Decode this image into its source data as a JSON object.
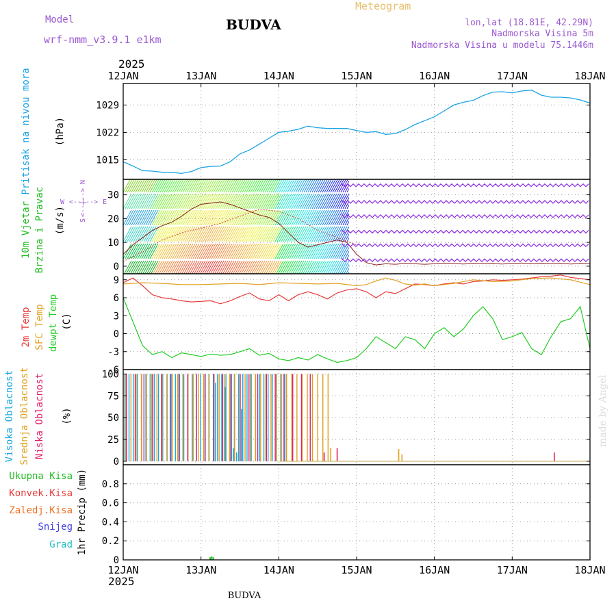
{
  "header": {
    "model_label": "Model",
    "model_name": "wrf-nmm_v3.9.1 e1km",
    "title": "BUDVA",
    "meteogram": "Meteogram",
    "lonlat": "lon,lat (18.81E, 42.29N)",
    "altitude": "Nadmorska Visina 5m",
    "model_altitude": "Nadmorska Visina u modelu 75.1446m",
    "year_top": "2025",
    "year_bottom": "2025",
    "footer": "BUDVA",
    "credit": "made by Angel"
  },
  "colors": {
    "pressure": "#1aa3e6",
    "temp2m": "#e83a3a",
    "sfc": "#e0a020",
    "dewpt": "#22cc22",
    "wind_label_green": "#22bb22",
    "purple": "#8a2be2",
    "cloud_high": "#18a8e0",
    "cloud_mid": "#e0a020",
    "cloud_low": "#e0206a",
    "rain_total": "#22bb22",
    "rain_conv": "#e83a3a",
    "rain_frz": "#f07020",
    "snow": "#4040e0",
    "hail": "#20c0c0"
  },
  "chart_data": [
    {
      "type": "line",
      "panel": "pressure",
      "ylabel": [
        "Pritisak na nivou mora",
        "(hPa)"
      ],
      "yticks": [
        1015,
        1022,
        1029
      ],
      "ylim": [
        1010.0,
        1034.5
      ],
      "xlim": [
        0,
        144
      ],
      "x_tick_labels": [
        "12JAN",
        "13JAN",
        "14JAN",
        "15JAN",
        "16JAN",
        "17JAN",
        "18JAN"
      ],
      "x_ticks_hours": [
        0,
        24,
        48,
        72,
        96,
        120,
        144
      ],
      "series": [
        {
          "x": [
            0,
            3,
            6,
            9,
            12,
            15,
            18,
            21,
            24,
            27,
            30,
            33,
            36,
            39,
            42,
            45,
            48,
            51,
            54,
            57,
            60,
            63,
            66,
            69,
            72,
            75,
            78,
            81,
            84,
            87,
            90,
            93,
            96,
            99,
            102,
            105,
            108,
            111,
            114,
            117,
            120,
            123,
            126,
            129,
            132,
            135,
            138,
            141,
            144
          ],
          "y": [
            1014.5,
            1013.4,
            1012.2,
            1012.1,
            1011.8,
            1011.8,
            1011.5,
            1012.0,
            1013.0,
            1013.3,
            1013.4,
            1014.5,
            1016.5,
            1017.5,
            1019.0,
            1020.5,
            1022.0,
            1022.3,
            1022.8,
            1023.6,
            1023.2,
            1023.0,
            1023.0,
            1023.0,
            1022.5,
            1022.0,
            1022.2,
            1021.5,
            1021.7,
            1022.7,
            1024.0,
            1025.0,
            1026.0,
            1027.5,
            1029.0,
            1029.7,
            1030.2,
            1031.4,
            1032.3,
            1032.4,
            1032.1,
            1032.6,
            1032.8,
            1031.5,
            1031.0,
            1031.0,
            1030.8,
            1030.3,
            1029.5
          ]
        }
      ]
    },
    {
      "type": "line",
      "panel": "wind",
      "ylabel": [
        "10m Vjetar",
        "Brzina i Pravac",
        "(m/s)"
      ],
      "compass": [
        "W",
        "<--|-->",
        "E",
        "N",
        "<--|-->",
        "S"
      ],
      "yticks": [
        0,
        10,
        20,
        30
      ],
      "ylim": [
        -3.2,
        36.5
      ],
      "xlim": [
        0,
        144
      ],
      "wind_rows": [
        2.5,
        8.8,
        14.5,
        21,
        27,
        34
      ],
      "series": [
        {
          "x": [
            0,
            3,
            6,
            9,
            12,
            15,
            18,
            21,
            24,
            27,
            30,
            33,
            36,
            39,
            42,
            45,
            48,
            51,
            54,
            57,
            60,
            63,
            66,
            69,
            72,
            75,
            78,
            81,
            84,
            87,
            90,
            93,
            96,
            99,
            102,
            105,
            108,
            111,
            114,
            117,
            120,
            123,
            126,
            129,
            132,
            135,
            138,
            141,
            144
          ],
          "y": [
            5,
            9,
            12,
            15,
            17,
            18.5,
            21,
            24,
            26,
            26.5,
            27,
            26,
            24.5,
            23,
            21.5,
            20.5,
            18,
            14,
            10,
            8,
            9,
            10,
            11,
            10,
            5,
            1.5,
            0.5,
            1.0,
            0.8,
            1.2,
            1.0,
            0.8,
            1.0,
            1.3,
            1.1,
            0.9,
            1.2,
            1.0,
            1.1,
            0.9,
            1.2,
            1.3,
            1.0,
            1.1,
            1.0,
            1.2,
            0.9,
            1.1,
            1.0
          ]
        },
        {
          "x": [
            0,
            6,
            12,
            18,
            24,
            30,
            36,
            42,
            48,
            54,
            60,
            66,
            72
          ],
          "y": [
            2,
            6,
            11,
            14,
            16,
            18,
            21,
            24,
            23,
            20,
            15,
            12,
            9
          ]
        }
      ]
    },
    {
      "type": "line",
      "panel": "temperature",
      "ylabel": [
        "2m Temp",
        "SFC Temp",
        "dewpt Temp",
        "(C)"
      ],
      "yticks": [
        -6,
        -3,
        0,
        3,
        6,
        9
      ],
      "ylim": [
        -6,
        10
      ],
      "xlim": [
        0,
        144
      ],
      "series": [
        {
          "name": "2m Temp",
          "x": [
            0,
            3,
            6,
            9,
            12,
            15,
            18,
            21,
            24,
            27,
            30,
            33,
            36,
            39,
            42,
            45,
            48,
            51,
            54,
            57,
            60,
            63,
            66,
            69,
            72,
            75,
            78,
            81,
            84,
            87,
            90,
            93,
            96,
            99,
            102,
            105,
            108,
            111,
            114,
            117,
            120,
            123,
            126,
            129,
            132,
            135,
            138,
            141,
            144
          ],
          "y": [
            8.5,
            9.3,
            8.0,
            6.5,
            6.0,
            5.8,
            5.5,
            5.3,
            5.4,
            5.5,
            5.0,
            5.5,
            6.2,
            6.8,
            5.8,
            5.5,
            6.5,
            5.5,
            6.5,
            7.0,
            6.5,
            5.8,
            6.8,
            7.3,
            7.5,
            7.0,
            6.0,
            7.0,
            6.7,
            7.5,
            8.3,
            8.2,
            8.0,
            8.3,
            8.5,
            8.3,
            8.7,
            8.8,
            9.0,
            8.9,
            9.0,
            9.1,
            9.3,
            9.5,
            9.6,
            9.8,
            9.4,
            9.2,
            9.0
          ]
        },
        {
          "name": "SFC Temp",
          "x": [
            0,
            6,
            12,
            18,
            24,
            30,
            36,
            42,
            48,
            54,
            60,
            66,
            72,
            75,
            78,
            81,
            84,
            87,
            90,
            93,
            96,
            102,
            108,
            114,
            120,
            126,
            132,
            138,
            144
          ],
          "y": [
            8.3,
            8.5,
            8.4,
            8.2,
            8.2,
            8.3,
            8.4,
            8.2,
            8.5,
            8.4,
            8.3,
            8.4,
            8.0,
            8.2,
            8.8,
            9.3,
            8.9,
            8.3,
            8.1,
            8.3,
            8.0,
            8.4,
            9.0,
            8.7,
            8.8,
            9.2,
            9.3,
            9.0,
            8.2
          ]
        },
        {
          "name": "dewpt Temp",
          "x": [
            0,
            3,
            6,
            9,
            12,
            15,
            18,
            21,
            24,
            27,
            30,
            33,
            36,
            39,
            42,
            45,
            48,
            51,
            54,
            57,
            60,
            63,
            66,
            69,
            72,
            75,
            78,
            81,
            84,
            87,
            90,
            93,
            96,
            99,
            102,
            105,
            108,
            111,
            114,
            117,
            120,
            123,
            126,
            129,
            132,
            135,
            138,
            141,
            144
          ],
          "y": [
            6.0,
            2.0,
            -2.0,
            -3.5,
            -3.0,
            -4.0,
            -3.2,
            -3.5,
            -3.8,
            -3.4,
            -3.6,
            -3.5,
            -3.0,
            -2.5,
            -3.6,
            -3.3,
            -4.2,
            -4.5,
            -4.0,
            -4.4,
            -3.5,
            -4.2,
            -4.8,
            -4.5,
            -4.0,
            -2.5,
            -0.5,
            -1.5,
            -2.5,
            -0.5,
            -1.0,
            -2.5,
            0.0,
            1.0,
            -0.5,
            0.8,
            3.0,
            4.5,
            2.5,
            -1.0,
            -0.5,
            0.2,
            -2.5,
            -3.5,
            -0.5,
            2.0,
            2.5,
            4.5,
            -2.5
          ]
        }
      ]
    },
    {
      "type": "bar",
      "panel": "clouds",
      "ylabel": [
        "Visoka Oblacnost",
        "Srednja Oblacnost",
        "Niska Oblacnost",
        "(%)"
      ],
      "yticks": [
        0,
        25,
        50,
        75,
        100
      ],
      "ylim": [
        -4,
        105
      ],
      "xlim": [
        0,
        144
      ],
      "series": [
        {
          "name": "Visoka Oblacnost",
          "x_start": 0.5,
          "x_end": 51,
          "x_step": 1.3,
          "value": 100,
          "partial": [
            [
              28.5,
              90
            ],
            [
              31.5,
              85
            ],
            [
              34,
              15
            ],
            [
              35,
              10
            ],
            [
              36.5,
              60
            ]
          ]
        },
        {
          "name": "Srednja Oblacnost",
          "x_start": 0.8,
          "x_end": 64,
          "x_step": 1.6,
          "value": 100,
          "partial": [
            [
              64,
              15
            ],
            [
              85,
              14
            ],
            [
              86,
              8
            ]
          ]
        },
        {
          "name": "Niska Oblacnost",
          "x_start": 1.0,
          "x_end": 60.0,
          "x_step": 2.7,
          "value": 100,
          "partial": [
            [
              62,
              10
            ],
            [
              66,
              15
            ],
            [
              133,
              10
            ]
          ]
        }
      ]
    },
    {
      "type": "bar",
      "panel": "precip",
      "ylabel": [
        "1hr Precip (mm)"
      ],
      "legend": [
        "Ukupna Kisa",
        "Konvek.Kisa",
        "Zaledj.Kisa",
        "Snijeg",
        "Grad"
      ],
      "yticks": [
        0,
        0.2,
        0.4,
        0.6,
        0.8
      ],
      "ylim": [
        0,
        1.0
      ],
      "xlim": [
        0,
        144
      ],
      "series": [
        {
          "name": "Ukupna Kisa",
          "x": [
            26.8,
            27.3,
            27.8
          ],
          "y": [
            0.02,
            0.03,
            0.02
          ]
        }
      ]
    }
  ]
}
